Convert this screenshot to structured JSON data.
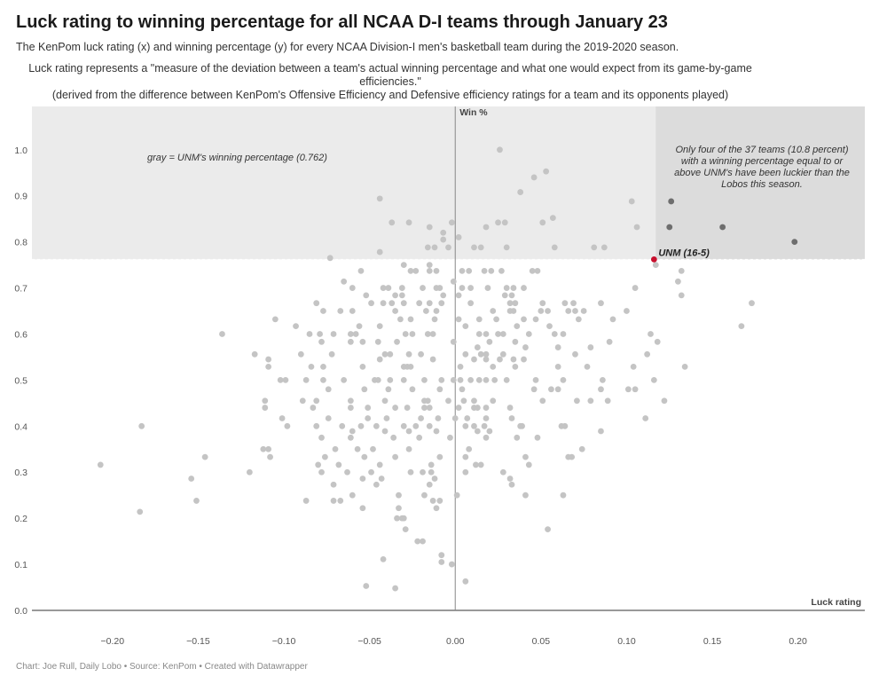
{
  "title": "Luck rating to winning percentage for all NCAA D-I teams through January 23",
  "subtitle": "The KenPom luck rating (x) and winning percentage (y) for every NCAA Division-I men's basketball team during the 2019-2020 season.",
  "description_line1": "Luck rating represents a \"measure of the deviation between a team's actual winning percentage and what one would expect from its game-by-game efficiencies.\"",
  "description_line2": "(derived from the difference between KenPom's Offensive Efficiency and Defensive efficiency ratings for a team and its opponents played)",
  "footer": "Chart: Joe Rull, Daily Lobo • Source: KenPom • Created with Datawrapper",
  "chart_data": {
    "type": "scatter",
    "xlabel": "Luck rating",
    "ylabel": "Win %",
    "xlim": [
      -0.247,
      0.239
    ],
    "ylim": [
      0,
      1.094
    ],
    "x_ticks": [
      "−0.20",
      "−0.15",
      "−0.10",
      "−0.05",
      "0.00",
      "0.05",
      "0.10",
      "0.15",
      "0.20"
    ],
    "x_tick_values": [
      -0.2,
      -0.15,
      -0.1,
      -0.05,
      0,
      0.05,
      0.1,
      0.15,
      0.2
    ],
    "y_ticks": [
      "0.0",
      "0.1",
      "0.2",
      "0.3",
      "0.4",
      "0.5",
      "0.6",
      "0.7",
      "0.8",
      "0.9",
      "1.0"
    ],
    "y_tick_values": [
      0,
      0.1,
      0.2,
      0.3,
      0.4,
      0.5,
      0.6,
      0.7,
      0.8,
      0.9,
      1.0
    ],
    "grid": false,
    "reference_region": {
      "y_min": 0.762,
      "highlight_x_min": 0.117
    },
    "colors": {
      "points": "#c4c4c4",
      "luckier_points": "#6e6e6e",
      "highlight": "#c8102e",
      "region": "#ebebeb",
      "region_dark": "#dcdcdc"
    },
    "annotations": {
      "gray_note": "gray = UNM's winning percentage (0.762)",
      "luck_note": [
        "Only four of the 37 teams (10.8 percent)",
        "with a winning percentage equal to or",
        "above UNM's have been luckier than the",
        "Lobos this season."
      ],
      "highlight_label": "UNM (16-5)"
    },
    "highlight": {
      "name": "UNM (16-5)",
      "x": 0.116,
      "y": 0.762
    },
    "luckier_points": [
      [
        0.126,
        0.888
      ],
      [
        0.125,
        0.832
      ],
      [
        0.156,
        0.832
      ],
      [
        0.198,
        0.8
      ]
    ],
    "points": [
      [
        0.026,
        1.0
      ],
      [
        0.053,
        0.953
      ],
      [
        0.046,
        0.94
      ],
      [
        0.038,
        0.908
      ],
      [
        -0.044,
        0.894
      ],
      [
        0.103,
        0.888
      ],
      [
        -0.037,
        0.842
      ],
      [
        -0.027,
        0.842
      ],
      [
        -0.002,
        0.842
      ],
      [
        0.025,
        0.842
      ],
      [
        0.029,
        0.842
      ],
      [
        0.051,
        0.842
      ],
      [
        0.057,
        0.852
      ],
      [
        -0.015,
        0.832
      ],
      [
        0.018,
        0.832
      ],
      [
        0.106,
        0.832
      ],
      [
        -0.007,
        0.82
      ],
      [
        -0.007,
        0.805
      ],
      [
        0.002,
        0.81
      ],
      [
        -0.016,
        0.788
      ],
      [
        -0.012,
        0.788
      ],
      [
        -0.004,
        0.788
      ],
      [
        0.011,
        0.788
      ],
      [
        0.015,
        0.788
      ],
      [
        0.03,
        0.788
      ],
      [
        0.058,
        0.788
      ],
      [
        0.081,
        0.788
      ],
      [
        0.087,
        0.788
      ],
      [
        -0.044,
        0.778
      ],
      [
        -0.073,
        0.765
      ],
      [
        -0.03,
        0.75
      ],
      [
        -0.015,
        0.75
      ],
      [
        0.117,
        0.75
      ],
      [
        -0.055,
        0.737
      ],
      [
        -0.026,
        0.737
      ],
      [
        -0.023,
        0.737
      ],
      [
        -0.015,
        0.737
      ],
      [
        -0.011,
        0.737
      ],
      [
        0.004,
        0.737
      ],
      [
        0.008,
        0.737
      ],
      [
        0.017,
        0.737
      ],
      [
        0.021,
        0.737
      ],
      [
        0.027,
        0.737
      ],
      [
        0.045,
        0.737
      ],
      [
        0.048,
        0.737
      ],
      [
        0.132,
        0.737
      ],
      [
        -0.065,
        0.714
      ],
      [
        -0.001,
        0.714
      ],
      [
        0.13,
        0.714
      ],
      [
        -0.06,
        0.7
      ],
      [
        -0.042,
        0.7
      ],
      [
        -0.039,
        0.7
      ],
      [
        -0.031,
        0.7
      ],
      [
        -0.019,
        0.7
      ],
      [
        -0.011,
        0.7
      ],
      [
        -0.009,
        0.7
      ],
      [
        0.004,
        0.7
      ],
      [
        0.009,
        0.7
      ],
      [
        0.019,
        0.7
      ],
      [
        0.03,
        0.7
      ],
      [
        0.034,
        0.7
      ],
      [
        0.04,
        0.7
      ],
      [
        0.105,
        0.7
      ],
      [
        -0.052,
        0.684
      ],
      [
        -0.035,
        0.684
      ],
      [
        -0.031,
        0.684
      ],
      [
        -0.007,
        0.684
      ],
      [
        0.002,
        0.684
      ],
      [
        0.029,
        0.684
      ],
      [
        0.033,
        0.684
      ],
      [
        0.132,
        0.684
      ],
      [
        -0.081,
        0.667
      ],
      [
        -0.049,
        0.667
      ],
      [
        -0.042,
        0.667
      ],
      [
        -0.037,
        0.667
      ],
      [
        -0.03,
        0.667
      ],
      [
        -0.021,
        0.667
      ],
      [
        -0.015,
        0.667
      ],
      [
        -0.008,
        0.667
      ],
      [
        0.009,
        0.667
      ],
      [
        0.032,
        0.667
      ],
      [
        0.035,
        0.667
      ],
      [
        0.051,
        0.667
      ],
      [
        0.064,
        0.667
      ],
      [
        0.069,
        0.667
      ],
      [
        0.085,
        0.667
      ],
      [
        0.173,
        0.667
      ],
      [
        -0.077,
        0.65
      ],
      [
        -0.067,
        0.65
      ],
      [
        -0.06,
        0.65
      ],
      [
        -0.035,
        0.65
      ],
      [
        -0.017,
        0.65
      ],
      [
        -0.011,
        0.65
      ],
      [
        0.022,
        0.65
      ],
      [
        0.032,
        0.65
      ],
      [
        0.034,
        0.65
      ],
      [
        0.05,
        0.65
      ],
      [
        0.054,
        0.65
      ],
      [
        0.066,
        0.65
      ],
      [
        0.07,
        0.65
      ],
      [
        0.075,
        0.65
      ],
      [
        0.1,
        0.65
      ],
      [
        -0.105,
        0.632
      ],
      [
        -0.032,
        0.632
      ],
      [
        -0.026,
        0.632
      ],
      [
        -0.012,
        0.632
      ],
      [
        0.002,
        0.632
      ],
      [
        0.014,
        0.632
      ],
      [
        0.024,
        0.632
      ],
      [
        0.04,
        0.632
      ],
      [
        0.047,
        0.632
      ],
      [
        0.072,
        0.632
      ],
      [
        0.092,
        0.632
      ],
      [
        -0.093,
        0.617
      ],
      [
        -0.056,
        0.617
      ],
      [
        -0.044,
        0.617
      ],
      [
        0.006,
        0.617
      ],
      [
        0.036,
        0.617
      ],
      [
        0.055,
        0.617
      ],
      [
        0.167,
        0.617
      ],
      [
        -0.136,
        0.6
      ],
      [
        -0.085,
        0.6
      ],
      [
        -0.079,
        0.6
      ],
      [
        -0.071,
        0.6
      ],
      [
        -0.061,
        0.6
      ],
      [
        -0.058,
        0.6
      ],
      [
        -0.029,
        0.6
      ],
      [
        -0.025,
        0.6
      ],
      [
        -0.016,
        0.6
      ],
      [
        -0.013,
        0.6
      ],
      [
        0.014,
        0.6
      ],
      [
        0.018,
        0.6
      ],
      [
        0.025,
        0.6
      ],
      [
        0.028,
        0.6
      ],
      [
        0.043,
        0.6
      ],
      [
        0.058,
        0.6
      ],
      [
        0.063,
        0.6
      ],
      [
        0.114,
        0.6
      ],
      [
        -0.078,
        0.583
      ],
      [
        -0.061,
        0.583
      ],
      [
        -0.054,
        0.583
      ],
      [
        -0.045,
        0.583
      ],
      [
        -0.034,
        0.583
      ],
      [
        -0.001,
        0.583
      ],
      [
        0.02,
        0.583
      ],
      [
        0.035,
        0.583
      ],
      [
        0.09,
        0.583
      ],
      [
        0.118,
        0.583
      ],
      [
        0.013,
        0.571
      ],
      [
        0.041,
        0.571
      ],
      [
        0.06,
        0.571
      ],
      [
        0.079,
        0.571
      ],
      [
        -0.117,
        0.556
      ],
      [
        -0.09,
        0.556
      ],
      [
        -0.072,
        0.556
      ],
      [
        -0.041,
        0.556
      ],
      [
        -0.038,
        0.556
      ],
      [
        -0.027,
        0.556
      ],
      [
        -0.02,
        0.556
      ],
      [
        0.006,
        0.556
      ],
      [
        0.015,
        0.556
      ],
      [
        0.018,
        0.556
      ],
      [
        0.028,
        0.556
      ],
      [
        0.07,
        0.556
      ],
      [
        0.112,
        0.556
      ],
      [
        -0.109,
        0.545
      ],
      [
        -0.044,
        0.545
      ],
      [
        -0.013,
        0.545
      ],
      [
        0.011,
        0.545
      ],
      [
        0.018,
        0.545
      ],
      [
        0.026,
        0.545
      ],
      [
        0.034,
        0.545
      ],
      [
        0.04,
        0.545
      ],
      [
        -0.109,
        0.529
      ],
      [
        -0.084,
        0.529
      ],
      [
        -0.077,
        0.529
      ],
      [
        -0.054,
        0.529
      ],
      [
        -0.03,
        0.529
      ],
      [
        -0.028,
        0.529
      ],
      [
        -0.026,
        0.529
      ],
      [
        0.003,
        0.529
      ],
      [
        0.022,
        0.529
      ],
      [
        0.035,
        0.529
      ],
      [
        0.06,
        0.529
      ],
      [
        0.077,
        0.529
      ],
      [
        0.104,
        0.529
      ],
      [
        0.134,
        0.529
      ],
      [
        -0.102,
        0.5
      ],
      [
        -0.099,
        0.5
      ],
      [
        -0.087,
        0.5
      ],
      [
        -0.077,
        0.5
      ],
      [
        -0.065,
        0.5
      ],
      [
        -0.047,
        0.5
      ],
      [
        -0.045,
        0.5
      ],
      [
        -0.038,
        0.5
      ],
      [
        -0.03,
        0.5
      ],
      [
        -0.018,
        0.5
      ],
      [
        -0.008,
        0.5
      ],
      [
        -0.001,
        0.5
      ],
      [
        0.003,
        0.5
      ],
      [
        0.009,
        0.5
      ],
      [
        0.014,
        0.5
      ],
      [
        0.018,
        0.5
      ],
      [
        0.023,
        0.5
      ],
      [
        0.03,
        0.5
      ],
      [
        0.047,
        0.5
      ],
      [
        0.063,
        0.5
      ],
      [
        0.086,
        0.5
      ],
      [
        0.116,
        0.5
      ],
      [
        -0.074,
        0.48
      ],
      [
        -0.053,
        0.48
      ],
      [
        -0.039,
        0.48
      ],
      [
        -0.025,
        0.48
      ],
      [
        -0.009,
        0.48
      ],
      [
        0.004,
        0.48
      ],
      [
        0.046,
        0.48
      ],
      [
        0.056,
        0.48
      ],
      [
        0.06,
        0.48
      ],
      [
        0.085,
        0.48
      ],
      [
        0.101,
        0.48
      ],
      [
        0.105,
        0.48
      ],
      [
        -0.111,
        0.455
      ],
      [
        -0.089,
        0.455
      ],
      [
        -0.081,
        0.455
      ],
      [
        -0.061,
        0.455
      ],
      [
        -0.041,
        0.455
      ],
      [
        -0.018,
        0.455
      ],
      [
        -0.016,
        0.455
      ],
      [
        -0.004,
        0.455
      ],
      [
        0.005,
        0.455
      ],
      [
        0.011,
        0.455
      ],
      [
        0.022,
        0.455
      ],
      [
        0.051,
        0.455
      ],
      [
        0.071,
        0.455
      ],
      [
        0.079,
        0.455
      ],
      [
        0.089,
        0.455
      ],
      [
        0.122,
        0.455
      ],
      [
        -0.111,
        0.44
      ],
      [
        -0.083,
        0.44
      ],
      [
        -0.061,
        0.44
      ],
      [
        -0.051,
        0.44
      ],
      [
        -0.035,
        0.44
      ],
      [
        -0.028,
        0.44
      ],
      [
        -0.018,
        0.44
      ],
      [
        -0.015,
        0.44
      ],
      [
        0.002,
        0.44
      ],
      [
        0.011,
        0.44
      ],
      [
        0.013,
        0.44
      ],
      [
        0.018,
        0.44
      ],
      [
        0.032,
        0.44
      ],
      [
        -0.101,
        0.417
      ],
      [
        -0.074,
        0.417
      ],
      [
        -0.051,
        0.417
      ],
      [
        -0.04,
        0.417
      ],
      [
        -0.02,
        0.417
      ],
      [
        -0.01,
        0.417
      ],
      [
        0.0,
        0.417
      ],
      [
        0.007,
        0.417
      ],
      [
        0.018,
        0.417
      ],
      [
        0.033,
        0.417
      ],
      [
        0.111,
        0.417
      ],
      [
        -0.183,
        0.4
      ],
      [
        -0.098,
        0.4
      ],
      [
        -0.081,
        0.4
      ],
      [
        -0.066,
        0.4
      ],
      [
        -0.055,
        0.4
      ],
      [
        -0.046,
        0.4
      ],
      [
        -0.03,
        0.4
      ],
      [
        -0.023,
        0.4
      ],
      [
        -0.015,
        0.4
      ],
      [
        0.006,
        0.4
      ],
      [
        0.011,
        0.4
      ],
      [
        0.017,
        0.4
      ],
      [
        0.038,
        0.4
      ],
      [
        0.039,
        0.4
      ],
      [
        0.062,
        0.4
      ],
      [
        0.064,
        0.4
      ],
      [
        -0.06,
        0.389
      ],
      [
        -0.041,
        0.389
      ],
      [
        -0.027,
        0.389
      ],
      [
        -0.011,
        0.389
      ],
      [
        0.013,
        0.389
      ],
      [
        0.02,
        0.389
      ],
      [
        0.085,
        0.389
      ],
      [
        -0.078,
        0.375
      ],
      [
        -0.061,
        0.375
      ],
      [
        -0.036,
        0.375
      ],
      [
        -0.021,
        0.375
      ],
      [
        -0.003,
        0.375
      ],
      [
        0.018,
        0.375
      ],
      [
        0.036,
        0.375
      ],
      [
        0.048,
        0.375
      ],
      [
        -0.112,
        0.35
      ],
      [
        -0.109,
        0.35
      ],
      [
        -0.07,
        0.35
      ],
      [
        -0.057,
        0.35
      ],
      [
        -0.048,
        0.35
      ],
      [
        -0.027,
        0.35
      ],
      [
        0.008,
        0.35
      ],
      [
        0.074,
        0.35
      ],
      [
        -0.146,
        0.333
      ],
      [
        -0.108,
        0.333
      ],
      [
        -0.076,
        0.333
      ],
      [
        -0.053,
        0.333
      ],
      [
        -0.035,
        0.333
      ],
      [
        -0.009,
        0.333
      ],
      [
        0.006,
        0.333
      ],
      [
        0.041,
        0.333
      ],
      [
        0.066,
        0.333
      ],
      [
        0.068,
        0.333
      ],
      [
        -0.207,
        0.316
      ],
      [
        -0.08,
        0.316
      ],
      [
        -0.068,
        0.316
      ],
      [
        -0.044,
        0.316
      ],
      [
        -0.014,
        0.316
      ],
      [
        0.012,
        0.316
      ],
      [
        0.015,
        0.316
      ],
      [
        0.043,
        0.316
      ],
      [
        -0.12,
        0.3
      ],
      [
        -0.078,
        0.3
      ],
      [
        -0.063,
        0.3
      ],
      [
        -0.049,
        0.3
      ],
      [
        -0.026,
        0.3
      ],
      [
        -0.019,
        0.3
      ],
      [
        -0.014,
        0.3
      ],
      [
        0.006,
        0.3
      ],
      [
        0.028,
        0.3
      ],
      [
        -0.154,
        0.286
      ],
      [
        -0.054,
        0.286
      ],
      [
        -0.043,
        0.286
      ],
      [
        -0.012,
        0.286
      ],
      [
        0.032,
        0.286
      ],
      [
        -0.071,
        0.273
      ],
      [
        -0.046,
        0.273
      ],
      [
        -0.015,
        0.273
      ],
      [
        0.033,
        0.273
      ],
      [
        -0.06,
        0.25
      ],
      [
        -0.033,
        0.25
      ],
      [
        -0.018,
        0.25
      ],
      [
        0.001,
        0.25
      ],
      [
        0.041,
        0.25
      ],
      [
        0.063,
        0.25
      ],
      [
        -0.151,
        0.238
      ],
      [
        -0.087,
        0.238
      ],
      [
        -0.071,
        0.238
      ],
      [
        -0.067,
        0.238
      ],
      [
        -0.013,
        0.238
      ],
      [
        -0.009,
        0.238
      ],
      [
        -0.054,
        0.222
      ],
      [
        -0.033,
        0.222
      ],
      [
        -0.011,
        0.222
      ],
      [
        -0.184,
        0.214
      ],
      [
        -0.034,
        0.2
      ],
      [
        -0.031,
        0.2
      ],
      [
        -0.03,
        0.2
      ],
      [
        0.054,
        0.176
      ],
      [
        -0.029,
        0.176
      ],
      [
        -0.022,
        0.15
      ],
      [
        -0.019,
        0.15
      ],
      [
        -0.042,
        0.111
      ],
      [
        -0.008,
        0.12
      ],
      [
        -0.008,
        0.105
      ],
      [
        -0.002,
        0.1
      ],
      [
        0.006,
        0.063
      ],
      [
        -0.052,
        0.053
      ],
      [
        -0.035,
        0.048
      ]
    ]
  }
}
